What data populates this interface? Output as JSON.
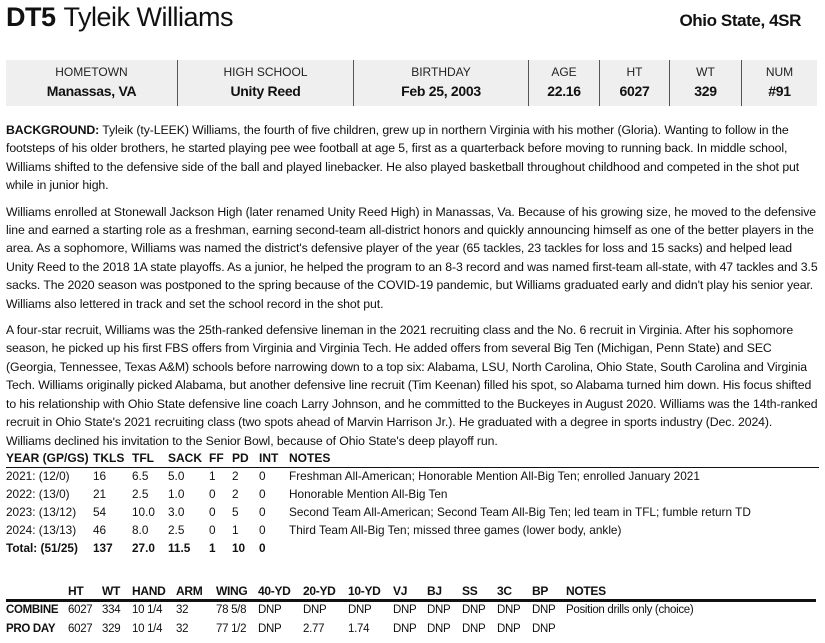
{
  "header": {
    "position": "DT5",
    "name": "Tyleik Williams",
    "school": "Ohio State, 4SR"
  },
  "info": [
    {
      "label": "HOMETOWN",
      "value": "Manassas, VA"
    },
    {
      "label": "HIGH SCHOOL",
      "value": "Unity Reed"
    },
    {
      "label": "BIRTHDAY",
      "value": "Feb 25, 2003"
    },
    {
      "label": "AGE",
      "value": "22.16"
    },
    {
      "label": "HT",
      "value": "6027"
    },
    {
      "label": "WT",
      "value": "329"
    },
    {
      "label": "NUM",
      "value": "#91"
    }
  ],
  "bio": {
    "lead": "BACKGROUND:",
    "p1": " Tyleik (ty-LEEK) Williams, the fourth of five children, grew up in northern Virginia with his mother (Gloria). Wanting to follow in the footsteps of his older brothers, he started playing pee wee football at age 5, first as a quarterback before moving to running back. In middle school, Williams shifted to the defensive side of the ball and played linebacker. He also played basketball throughout childhood and competed in the shot put while in junior high.",
    "p2": "Williams enrolled at Stonewall Jackson High (later renamed Unity Reed High) in Manassas, Va. Because of his growing size, he moved to the defensive line and earned a starting role as a freshman, earning second-team all-district honors and quickly announcing himself as one of the better players in the area. As a sophomore, Williams was named the district's defensive player of the year (65 tackles, 23 tackles for loss and 15 sacks) and helped lead Unity Reed to the 2018 1A state playoffs. As a junior, he helped the program to an 8-3 record and was named first-team all-state, with 47 tackles and 3.5 sacks. The 2020 season was postponed to the spring because of the COVID-19 pandemic, but Williams graduated early and didn't play his senior year. Williams also lettered in track and set the school record in the shot put.",
    "p3": "A four-star recruit, Williams was the 25th-ranked defensive lineman in the 2021 recruiting class and the No. 6 recruit in Virginia. After his sophomore season, he picked up his first FBS offers from Virginia and Virginia Tech. He added offers from several Big Ten (Michigan, Penn State) and SEC (Georgia, Tennessee, Texas A&M) schools before narrowing down to a top six: Alabama, LSU, North Carolina, Ohio State, South Carolina and Virginia Tech. Williams originally picked Alabama, but another defensive line recruit (Tim Keenan) filled his spot, so Alabama turned him down. His focus shifted to his relationship with Ohio State defensive line coach Larry Johnson, and he committed to the Buckeyes in August 2020. Williams was the 14th-ranked recruit in Ohio State's 2021 recruiting class (two spots ahead of Marvin Harrison Jr.). He graduated with a degree in sports industry (Dec. 2024). Williams declined his invitation to the Senior Bowl, because of Ohio State's deep playoff run."
  },
  "stats": {
    "headers": [
      "YEAR (GP/GS)",
      "TKLS",
      "TFL",
      "SACK",
      "FF",
      "PD",
      "INT",
      "NOTES"
    ],
    "rows": [
      [
        "2021: (12/0)",
        "16",
        "6.5",
        "5.0",
        "1",
        "2",
        "0",
        "Freshman All-American; Honorable Mention All-Big Ten; enrolled January 2021"
      ],
      [
        "2022: (13/0)",
        "21",
        "2.5",
        "1.0",
        "0",
        "2",
        "0",
        "Honorable Mention All-Big Ten"
      ],
      [
        "2023: (13/12)",
        "54",
        "10.0",
        "3.0",
        "0",
        "5",
        "0",
        "Second Team All-American; Second Team All-Big Ten; led team in TFL; fumble return TD"
      ],
      [
        "2024: (13/13)",
        "46",
        "8.0",
        "2.5",
        "0",
        "1",
        "0",
        "Third Team All-Big Ten; missed three games (lower body, ankle)"
      ]
    ],
    "total": [
      "Total: (51/25)",
      "137",
      "27.0",
      "11.5",
      "1",
      "10",
      "0",
      ""
    ]
  },
  "combine": {
    "headers": [
      "",
      "HT",
      "WT",
      "HAND",
      "ARM",
      "WING",
      "40-YD",
      "20-YD",
      "10-YD",
      "VJ",
      "BJ",
      "SS",
      "3C",
      "BP",
      "NOTES"
    ],
    "rows": [
      [
        "COMBINE",
        "6027",
        "334",
        "10 1/4",
        "32",
        "78 5/8",
        "DNP",
        "DNP",
        "DNP",
        "DNP",
        "DNP",
        "DNP",
        "DNP",
        "DNP",
        "Position drills only (choice)"
      ],
      [
        "PRO DAY",
        "6027",
        "329",
        "10 1/4",
        "32",
        "77 1/2",
        "DNP",
        "2.77",
        "1.74",
        "DNP",
        "DNP",
        "DNP",
        "DNP",
        "DNP",
        ""
      ]
    ]
  }
}
